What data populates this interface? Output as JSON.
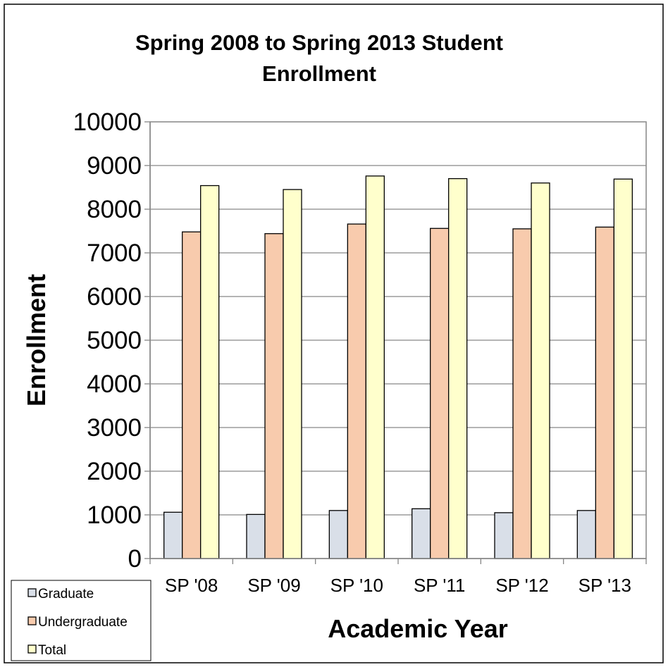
{
  "chart_data": {
    "type": "bar",
    "title_lines": [
      "Spring 2008 to Spring 2013 Student",
      "Enrollment"
    ],
    "xlabel": "Academic Year",
    "ylabel": "Enrollment",
    "categories": [
      "SP '08",
      "SP '09",
      "SP '10",
      "SP '11",
      "SP '12",
      "SP '13"
    ],
    "series": [
      {
        "name": "Graduate",
        "color": "#d9dfe8",
        "values": [
          1060,
          1010,
          1100,
          1140,
          1050,
          1100
        ]
      },
      {
        "name": "Undergraduate",
        "color": "#f8cbad",
        "values": [
          7480,
          7440,
          7660,
          7560,
          7550,
          7590
        ]
      },
      {
        "name": "Total",
        "color": "#ffffcc",
        "values": [
          8540,
          8450,
          8760,
          8700,
          8600,
          8690
        ]
      }
    ],
    "ylim": [
      0,
      10000
    ],
    "yticks": [
      0,
      1000,
      2000,
      3000,
      4000,
      5000,
      6000,
      7000,
      8000,
      9000,
      10000
    ],
    "grid": true,
    "legend_position": "bottom-left"
  }
}
